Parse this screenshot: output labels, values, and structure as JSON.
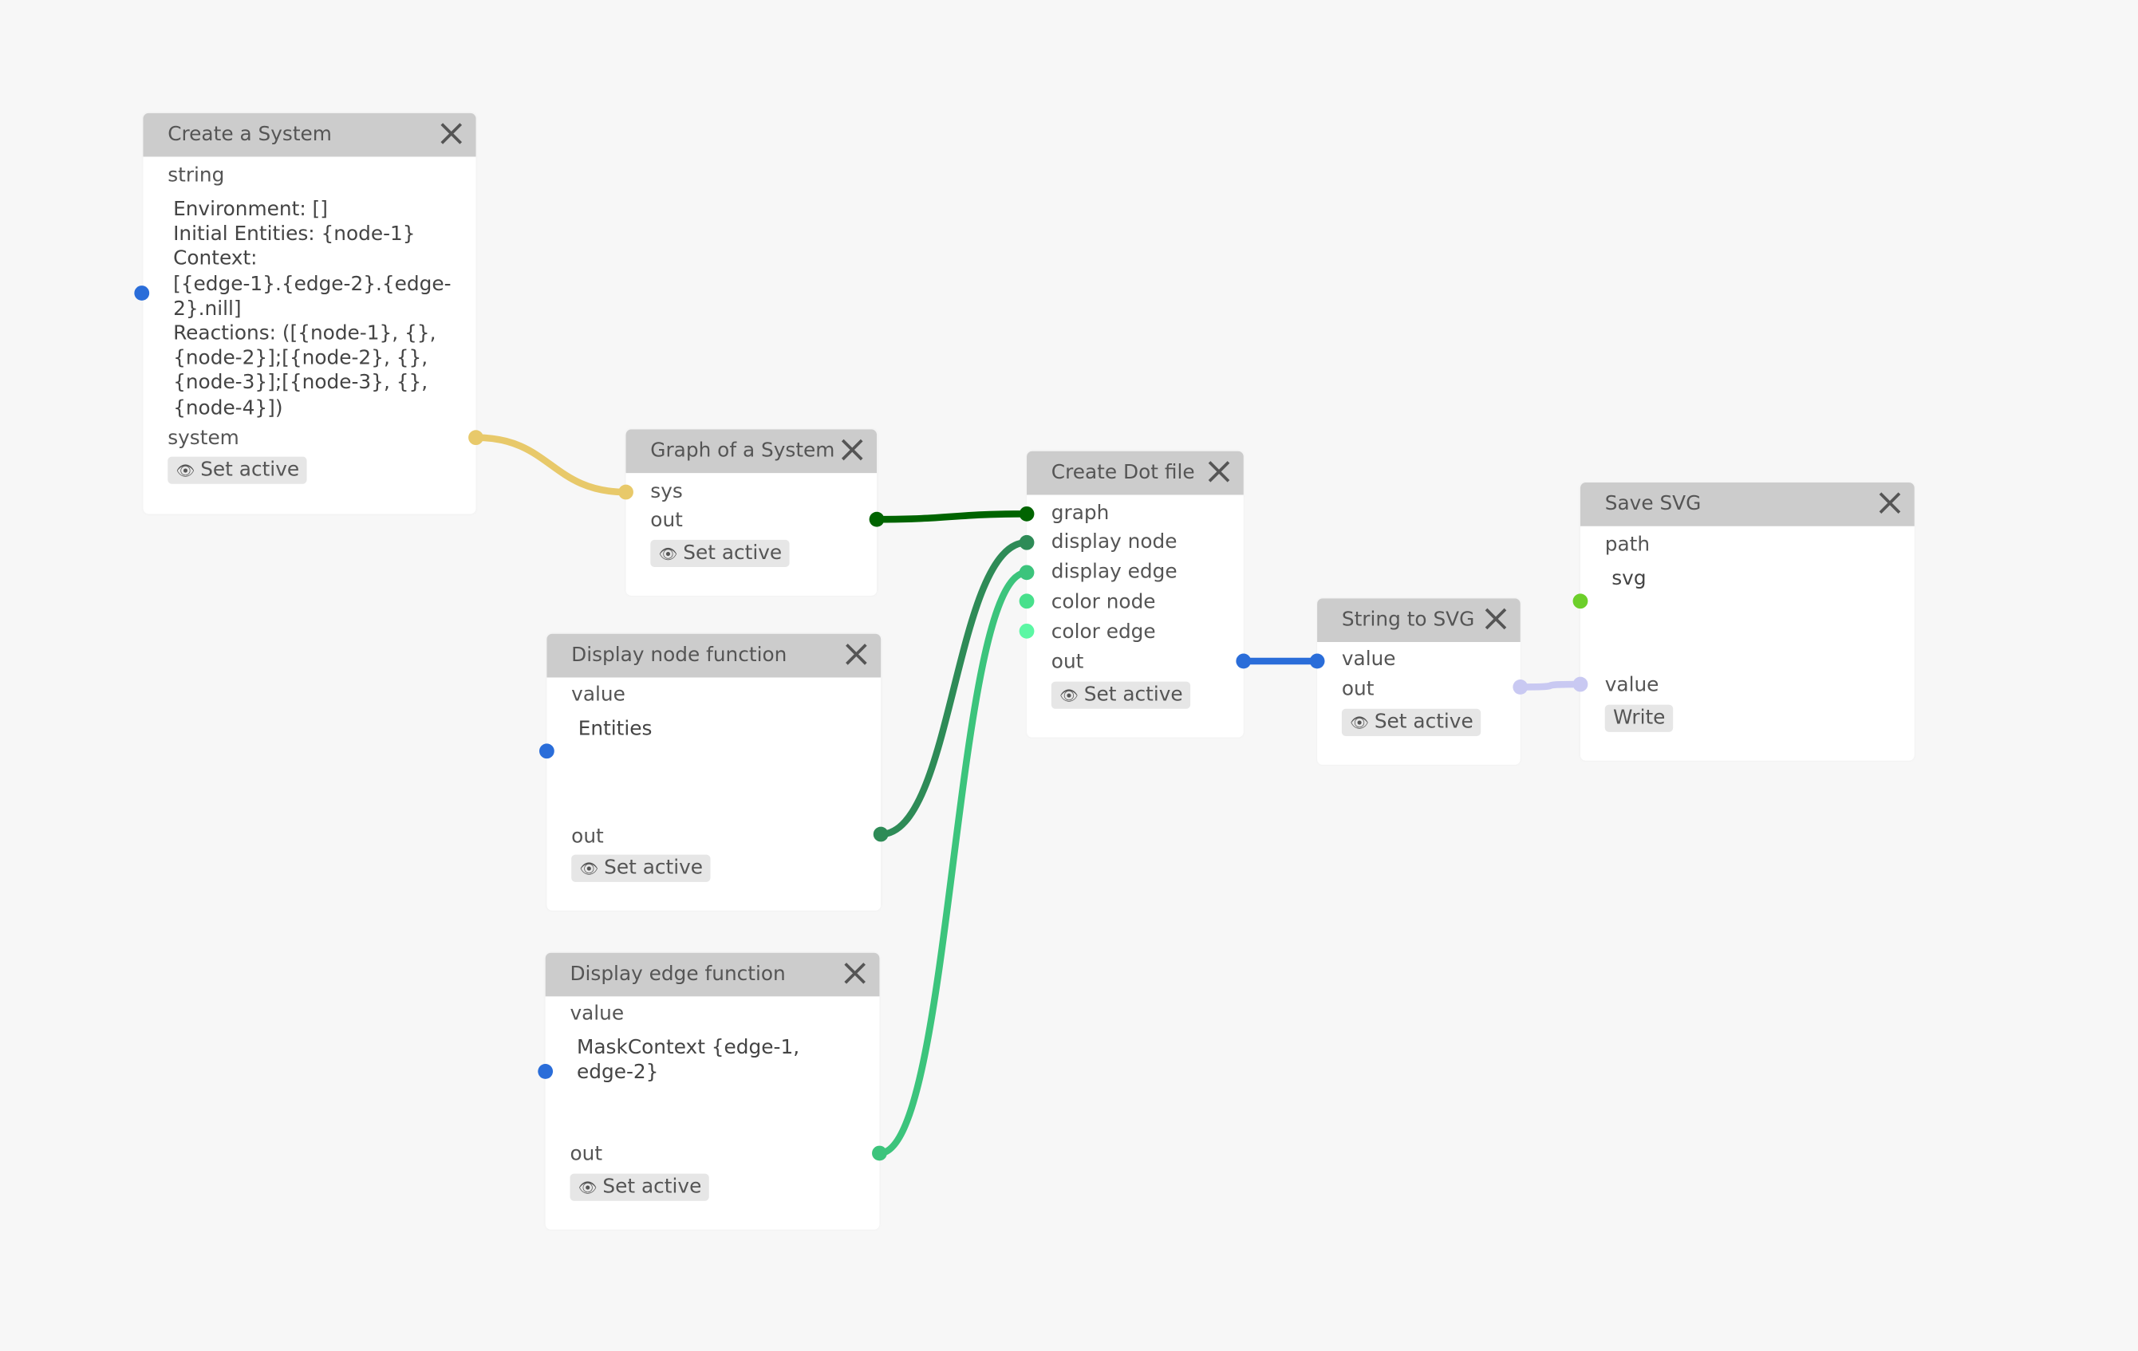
{
  "nodes": {
    "create_system": {
      "title": "Create a System",
      "input_label": "string",
      "value": "Environment: []\nInitial Entities: {node-1}\nContext:\n[{edge-1}.{edge-2}.{edge-\n2}.nill]\nReactions: ([{node-1}, {},\n{node-2}];[{node-2}, {},\n{node-3}];[{node-3}, {},\n{node-4}])",
      "output_label": "system",
      "button": "Set active"
    },
    "graph_system": {
      "title": "Graph of a System",
      "input_label": "sys",
      "output_label": "out",
      "button": "Set active"
    },
    "display_node": {
      "title": "Display node function",
      "input_label": "value",
      "value": "Entities",
      "output_label": "out",
      "button": "Set active"
    },
    "display_edge": {
      "title": "Display edge function",
      "input_label": "value",
      "value": "MaskContext {edge-1,\nedge-2}",
      "output_label": "out",
      "button": "Set active"
    },
    "create_dot": {
      "title": "Create Dot file",
      "inputs": [
        "graph",
        "display node",
        "display edge",
        "color node",
        "color edge"
      ],
      "output_label": "out",
      "button": "Set active"
    },
    "string_svg": {
      "title": "String to SVG",
      "input_label": "value",
      "output_label": "out",
      "button": "Set active"
    },
    "save_svg": {
      "title": "Save SVG",
      "input_label": "path",
      "value": "svg",
      "input2_label": "value",
      "button": "Write"
    }
  },
  "icons": {
    "close": "x-icon",
    "eye": "eye-icon"
  },
  "colors": {
    "system_wire": "#e8c96a",
    "graph_wire": "#006400",
    "display_node_wire": "#2e8b57",
    "display_edge_wire": "#3cc47c",
    "color_node_port": "#48e08c",
    "color_edge_port": "#5cf7a4",
    "string_wire": "#2a6dd9",
    "svg_wire": "#c9c9f2",
    "path_port": "#6ccf2a",
    "string_port": "#2a6dd9"
  }
}
